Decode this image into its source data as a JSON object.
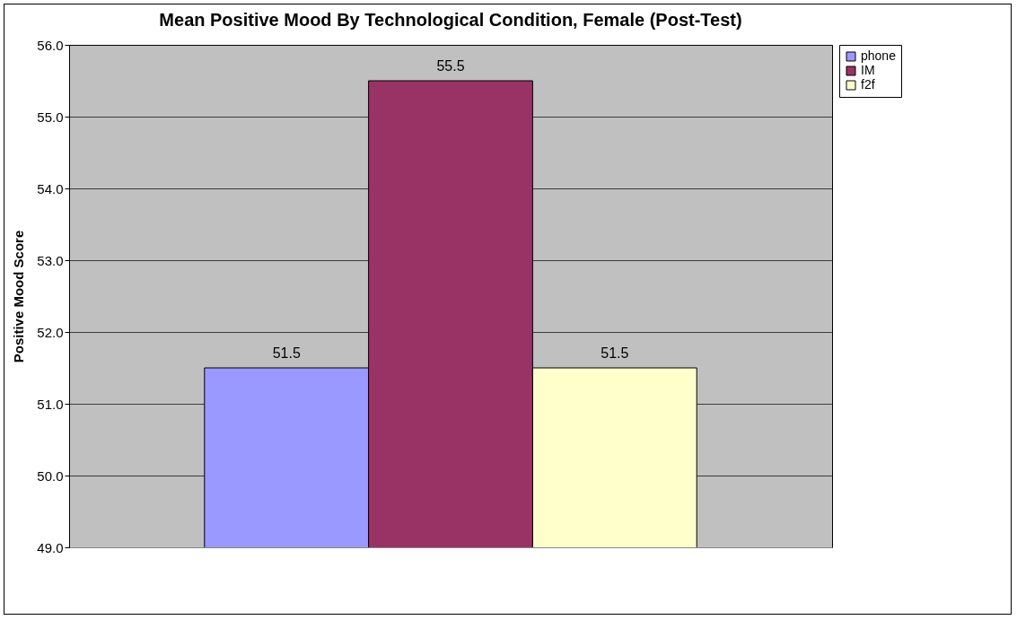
{
  "chart_data": {
    "type": "bar",
    "title": "Mean  Positive Mood By Technological Condition, Female (Post-Test)",
    "ylabel": "Positive Mood Score",
    "categories": [
      null
    ],
    "series": [
      {
        "name": "phone",
        "color": "#9999ff",
        "values": [
          51.5
        ]
      },
      {
        "name": "IM",
        "color": "#993366",
        "values": [
          55.5
        ]
      },
      {
        "name": "f2f",
        "color": "#ffffcc",
        "values": [
          51.5
        ]
      }
    ],
    "ylim": [
      49,
      56
    ],
    "yticks": [
      {
        "value": 49,
        "label": "49.0"
      },
      {
        "value": 50,
        "label": "50.0"
      },
      {
        "value": 51,
        "label": "51.0"
      },
      {
        "value": 52,
        "label": "52.0"
      },
      {
        "value": 53,
        "label": "53.0"
      },
      {
        "value": 54,
        "label": "54.0"
      },
      {
        "value": 55,
        "label": "55.0"
      },
      {
        "value": 56,
        "label": "56.0"
      }
    ],
    "grid": "y",
    "legend": "right",
    "data_labels": true
  }
}
